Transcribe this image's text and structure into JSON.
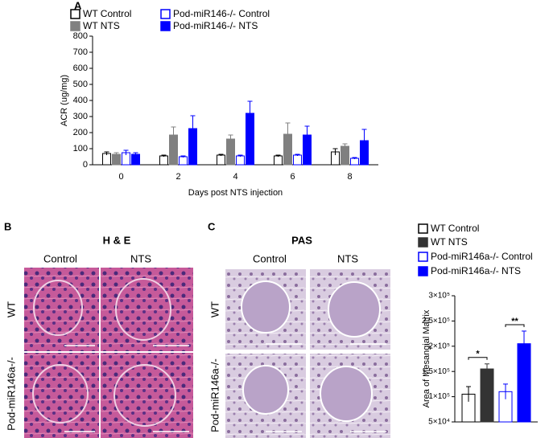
{
  "chart_data": [
    {
      "type": "bar",
      "panel": "A",
      "categories": [
        "0",
        "2",
        "4",
        "6",
        "8"
      ],
      "xlabel": "Days post NTS injection",
      "ylabel": "ACR (ug/mg)",
      "ylim": [
        0,
        800
      ],
      "yticks": [
        0,
        100,
        200,
        300,
        400,
        500,
        600,
        700,
        800
      ],
      "series": [
        {
          "name": "WT Control",
          "color": "#000000",
          "filled": false,
          "values": [
            70,
            55,
            60,
            55,
            80
          ],
          "errors": [
            10,
            5,
            5,
            5,
            20
          ]
        },
        {
          "name": "WT NTS",
          "color": "#808080",
          "filled": true,
          "values": [
            65,
            185,
            160,
            190,
            115
          ],
          "errors": [
            10,
            50,
            25,
            70,
            15
          ]
        },
        {
          "name": "Pod-miR146-/- Control",
          "color": "#0000ff",
          "filled": false,
          "values": [
            75,
            50,
            55,
            60,
            40
          ],
          "errors": [
            15,
            5,
            5,
            5,
            5
          ]
        },
        {
          "name": "Pod-miR146-/- NTS",
          "color": "#0000ff",
          "filled": true,
          "values": [
            65,
            225,
            320,
            185,
            150
          ],
          "errors": [
            10,
            80,
            75,
            55,
            70
          ]
        }
      ]
    },
    {
      "type": "bar",
      "categories": [
        null
      ],
      "ylabel": "Area of Mesangial Matrix",
      "ylim": [
        50000,
        300000
      ],
      "yticks": [
        {
          "value": 50000,
          "label": "5×10⁴"
        },
        {
          "value": 100000,
          "label": "1×10⁵"
        },
        {
          "value": 150000,
          "label": "1.5×10⁵"
        },
        {
          "value": 200000,
          "label": "2×10⁵"
        },
        {
          "value": 250000,
          "label": "2.5×10⁵"
        },
        {
          "value": 300000,
          "label": "3×10⁵"
        }
      ],
      "series": [
        {
          "name": "WT Control",
          "color": "#000000",
          "filled": false,
          "values": [
            105000
          ],
          "errors": [
            15000
          ]
        },
        {
          "name": "WT NTS",
          "color": "#333333",
          "filled": true,
          "values": [
            155000
          ],
          "errors": [
            10000
          ]
        },
        {
          "name": "Pod-miR146a-/- Control",
          "color": "#0000ff",
          "filled": false,
          "values": [
            110000
          ],
          "errors": [
            15000
          ]
        },
        {
          "name": "Pod-miR146a-/- NTS",
          "color": "#0000ff",
          "filled": true,
          "values": [
            205000
          ],
          "errors": [
            25000
          ]
        }
      ],
      "annotations": [
        "*",
        "**"
      ]
    }
  ],
  "histology": [
    {
      "panel": "B",
      "title": "H & E",
      "columns": [
        "Control",
        "NTS"
      ],
      "rows": [
        "WT",
        "Pod-miR146a-/-"
      ]
    },
    {
      "panel": "C",
      "title": "PAS",
      "columns": [
        "Control",
        "NTS"
      ],
      "rows": [
        "WT",
        "Pod-miR146a-/-"
      ]
    }
  ]
}
